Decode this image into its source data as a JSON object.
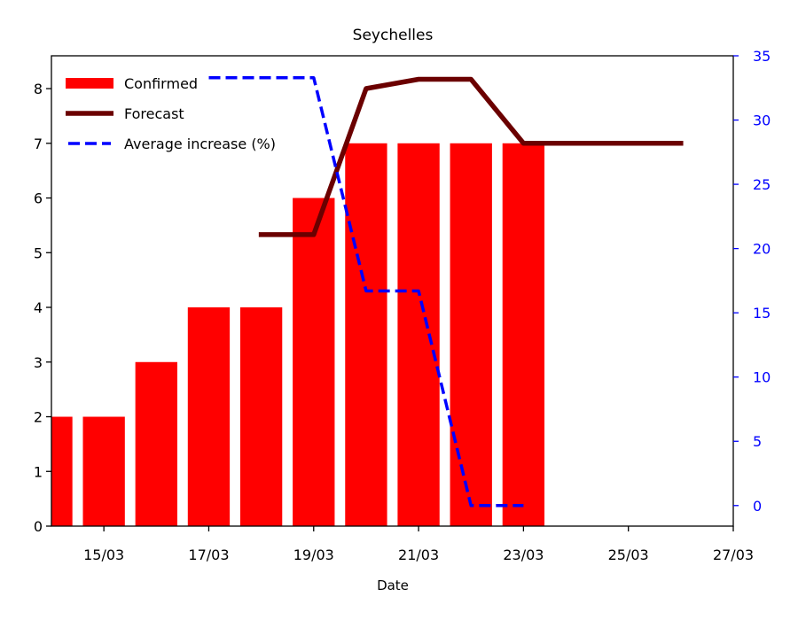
{
  "chart_data": {
    "type": "bar",
    "title": "Seychelles",
    "xlabel": "Date",
    "ylabel": "",
    "ylabel_right": "",
    "xlim": [
      "2020-03-14",
      "2020-03-27"
    ],
    "ylim": [
      0,
      8.6
    ],
    "ylim_right": [
      -1.6,
      35
    ],
    "x_ticks": [
      "15/03",
      "17/03",
      "19/03",
      "21/03",
      "23/03",
      "25/03",
      "27/03"
    ],
    "x_tick_dates": [
      "2020-03-15",
      "2020-03-17",
      "2020-03-19",
      "2020-03-21",
      "2020-03-23",
      "2020-03-25",
      "2020-03-27"
    ],
    "y_ticks": [
      0,
      1,
      2,
      3,
      4,
      5,
      6,
      7,
      8
    ],
    "y_ticks_right": [
      0,
      5,
      10,
      15,
      20,
      25,
      30,
      35
    ],
    "grid": false,
    "legend_position": "top-left",
    "series": [
      {
        "name": "Confirmed",
        "type": "bar",
        "color": "#ff0000",
        "axis": "left",
        "x": [
          "2020-03-14",
          "2020-03-15",
          "2020-03-16",
          "2020-03-17",
          "2020-03-18",
          "2020-03-19",
          "2020-03-20",
          "2020-03-21",
          "2020-03-22",
          "2020-03-23"
        ],
        "values": [
          2,
          2,
          3,
          4,
          4,
          6,
          7,
          7,
          7,
          7
        ]
      },
      {
        "name": "Forecast",
        "type": "line",
        "color": "#6b0000",
        "style": "solid",
        "axis": "left",
        "x": [
          "2020-03-18",
          "2020-03-19",
          "2020-03-20",
          "2020-03-21",
          "2020-03-22",
          "2020-03-23",
          "2020-03-24",
          "2020-03-25",
          "2020-03-26"
        ],
        "values": [
          5.33,
          5.33,
          8.0,
          8.17,
          8.17,
          7.0,
          7.0,
          7.0,
          7.0
        ]
      },
      {
        "name": "Average increase (%)",
        "type": "line",
        "color": "#0000ff",
        "style": "dashed",
        "axis": "right",
        "x": [
          "2020-03-17",
          "2020-03-19",
          "2020-03-20",
          "2020-03-21",
          "2020-03-22",
          "2020-03-23"
        ],
        "values": [
          33.3,
          33.3,
          16.7,
          16.7,
          0,
          0
        ]
      }
    ]
  }
}
